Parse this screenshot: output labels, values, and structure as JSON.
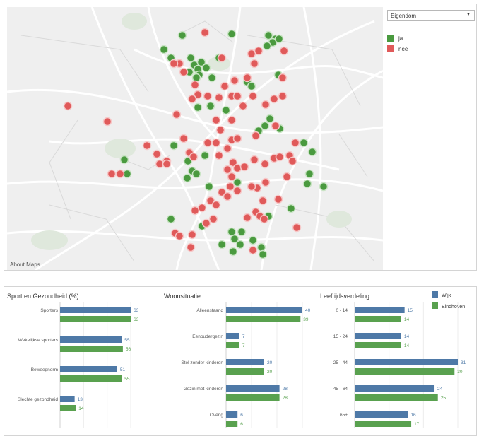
{
  "map": {
    "about_label": "About Maps",
    "filter": {
      "selected": "Eigendom",
      "caret_icon": "caret-down-icon"
    },
    "legend": [
      {
        "label": "ja",
        "color": "#4a9a3f"
      },
      {
        "label": "nee",
        "color": "#e05a5a"
      }
    ]
  },
  "stats": {
    "legend": [
      {
        "label": "Wijk",
        "color": "#4e79a7"
      },
      {
        "label": "Eindhoven",
        "color": "#59a14f"
      }
    ],
    "sections": [
      {
        "title": "Sport en Gezondheid (%)",
        "max": 63,
        "rows": [
          {
            "label": "Sporters",
            "wijk": 63,
            "eindhoven": 63
          },
          {
            "label": "Wekelijkse sporters",
            "wijk": 55,
            "eindhoven": 56
          },
          {
            "label": "Beweegnorm",
            "wijk": 51,
            "eindhoven": 55
          },
          {
            "label": "Slechte gezondheid",
            "wijk": 13,
            "eindhoven": 14
          }
        ]
      },
      {
        "title": "Woonsituatie",
        "max": 40,
        "rows": [
          {
            "label": "Alleenstaand",
            "wijk": 40,
            "eindhoven": 39
          },
          {
            "label": "Eenoudergezin",
            "wijk": 7,
            "eindhoven": 7
          },
          {
            "label": "Stel zonder kinderen",
            "wijk": 20,
            "eindhoven": 20
          },
          {
            "label": "Gezin met kinderen",
            "wijk": 28,
            "eindhoven": 28
          },
          {
            "label": "Overig",
            "wijk": 6,
            "eindhoven": 6
          }
        ]
      },
      {
        "title": "Leeftijdsverdeling",
        "max": 31,
        "rows": [
          {
            "label": "0 - 14",
            "wijk": 15,
            "eindhoven": 14
          },
          {
            "label": "15 - 24",
            "wijk": 14,
            "eindhoven": 14
          },
          {
            "label": "25 - 44",
            "wijk": 31,
            "eindhoven": 30
          },
          {
            "label": "45 - 64",
            "wijk": 24,
            "eindhoven": 25
          },
          {
            "label": "65+",
            "wijk": 16,
            "eindhoven": 17
          }
        ]
      }
    ]
  }
}
